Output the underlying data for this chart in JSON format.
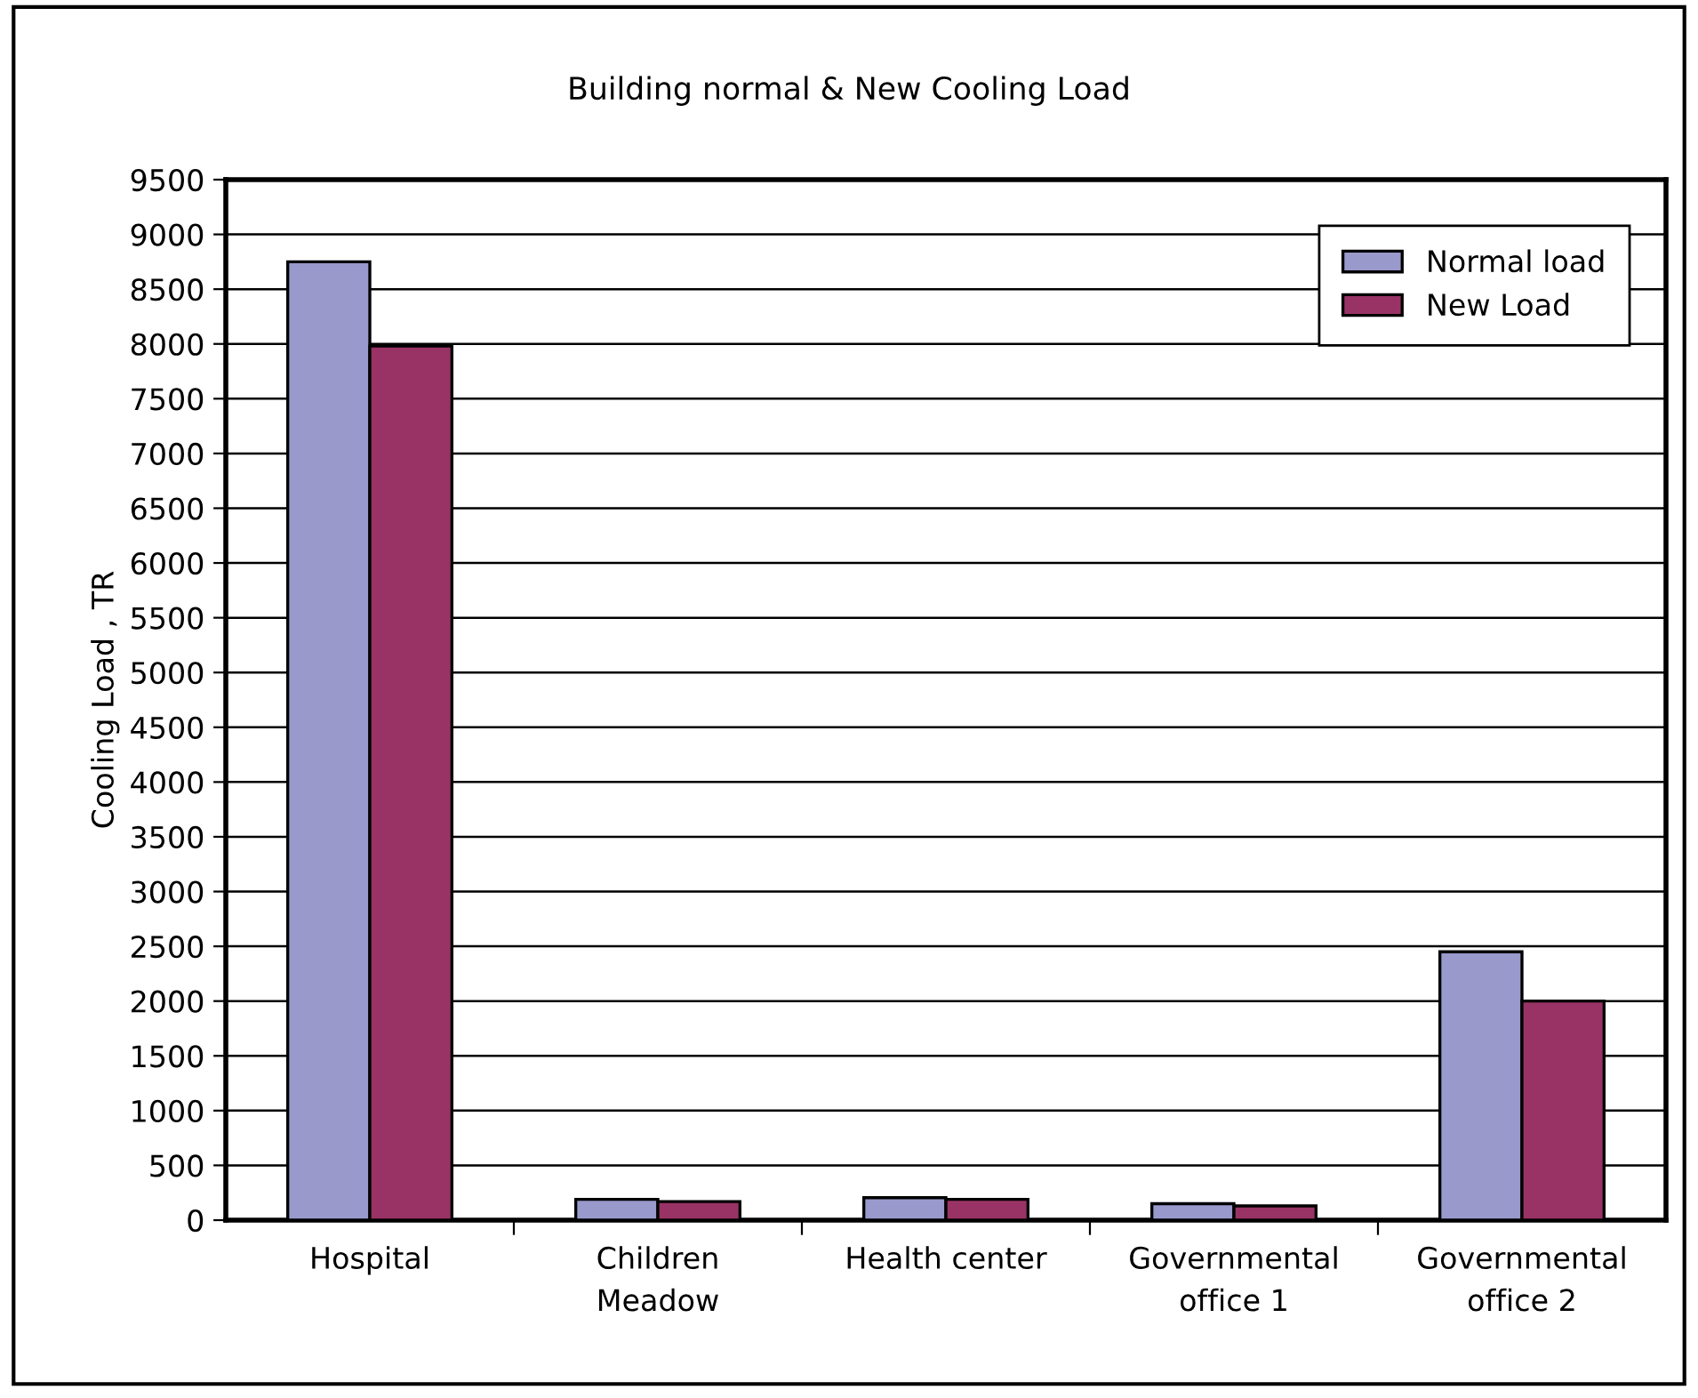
{
  "chart_data": {
    "type": "bar",
    "title": "Building normal & New Cooling Load",
    "ylabel": "Cooling Load , TR",
    "categories": [
      "Hospital",
      "Children\nMeadow",
      "Health center",
      "Governmental\noffice 1",
      "Governmental\noffice 2"
    ],
    "series": [
      {
        "name": "Normal load",
        "color": "#9999cc",
        "values": [
          8750,
          190,
          205,
          150,
          2450
        ]
      },
      {
        "name": "New Load",
        "color": "#993366",
        "values": [
          7980,
          170,
          190,
          130,
          2000
        ]
      }
    ],
    "ylim": [
      0,
      9500
    ],
    "yticks": [
      0,
      500,
      1000,
      1500,
      2000,
      2500,
      3000,
      3500,
      4000,
      4500,
      5000,
      5500,
      6000,
      6500,
      7000,
      7500,
      8000,
      8500,
      9000,
      9500
    ],
    "grid": "y",
    "legend": "top right"
  }
}
